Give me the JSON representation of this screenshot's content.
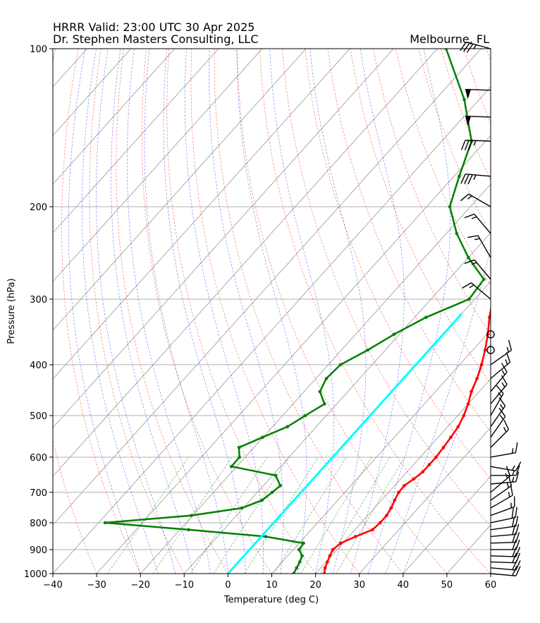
{
  "header": {
    "title_line1": "HRRR  Valid: 23:00 UTC 30 Apr 2025",
    "title_line2": "Dr. Stephen Masters Consulting, LLC",
    "location": "Melbourne, FL"
  },
  "chart_data": {
    "type": "skew-t",
    "xlabel": "Temperature (deg C)",
    "ylabel": "Pressure (hPa)",
    "xlim": [
      -40,
      60
    ],
    "ylim": [
      1000,
      100
    ],
    "y_scale": "log",
    "grid": true,
    "x_ticks": [
      -40,
      -30,
      -20,
      -10,
      0,
      10,
      20,
      30,
      40,
      50,
      60
    ],
    "y_ticks": [
      100,
      200,
      300,
      400,
      500,
      600,
      700,
      800,
      900,
      1000
    ],
    "colors": {
      "temperature": "#ff0000",
      "dewpoint": "#008000",
      "freezing_isotherm": "#00ffff",
      "isotherms": "#a0a0a0",
      "dry_adiabats": "#ff0000",
      "moist_adiabats": "#0000ff",
      "mixing_ratio": "#008000"
    },
    "series": [
      {
        "id": "temperature",
        "points": [
          [
            1000,
            22.0
          ],
          [
            975,
            21.0
          ],
          [
            950,
            20.3
          ],
          [
            925,
            19.6
          ],
          [
            900,
            19.0
          ],
          [
            875,
            19.5
          ],
          [
            850,
            21.5
          ],
          [
            825,
            24.0
          ],
          [
            800,
            24.3
          ],
          [
            775,
            24.3
          ],
          [
            750,
            23.8
          ],
          [
            725,
            23.0
          ],
          [
            700,
            22.3
          ],
          [
            680,
            22.2
          ],
          [
            660,
            23.0
          ],
          [
            640,
            23.6
          ],
          [
            620,
            23.6
          ],
          [
            600,
            23.6
          ],
          [
            575,
            23.3
          ],
          [
            550,
            22.9
          ],
          [
            525,
            22.4
          ],
          [
            500,
            21.4
          ],
          [
            475,
            20.0
          ],
          [
            450,
            18.2
          ],
          [
            425,
            16.8
          ],
          [
            400,
            15.0
          ],
          [
            375,
            12.8
          ],
          [
            350,
            10.2
          ],
          [
            325,
            7.1
          ],
          [
            300,
            4.1
          ],
          [
            275,
            0.5
          ],
          [
            250,
            -4.0
          ],
          [
            225,
            -8.6
          ],
          [
            200,
            -13.6
          ],
          [
            175,
            -13.5
          ],
          [
            150,
            -18.0
          ],
          [
            125,
            -25.6
          ],
          [
            112,
            -31.0
          ],
          [
            100,
            -37.5
          ]
        ]
      },
      {
        "id": "dewpoint",
        "points": [
          [
            1000,
            15.0
          ],
          [
            975,
            14.5
          ],
          [
            950,
            14.0
          ],
          [
            925,
            13.3
          ],
          [
            900,
            11.3
          ],
          [
            875,
            11.0
          ],
          [
            850,
            1.0
          ],
          [
            825,
            -18.0
          ],
          [
            800,
            -38.5
          ],
          [
            775,
            -20.3
          ],
          [
            750,
            -10.3
          ],
          [
            725,
            -7.3
          ],
          [
            700,
            -6.6
          ],
          [
            680,
            -6.1
          ],
          [
            650,
            -9.3
          ],
          [
            625,
            -21.2
          ],
          [
            600,
            -21.3
          ],
          [
            575,
            -23.4
          ],
          [
            550,
            -20.1
          ],
          [
            525,
            -16.6
          ],
          [
            500,
            -14.8
          ],
          [
            475,
            -12.8
          ],
          [
            450,
            -16.4
          ],
          [
            425,
            -17.6
          ],
          [
            400,
            -17.2
          ],
          [
            375,
            -14.0
          ],
          [
            350,
            -11.2
          ],
          [
            325,
            -7.4
          ],
          [
            300,
            -1.3
          ],
          [
            275,
            -2.0
          ],
          [
            250,
            -10.0
          ],
          [
            225,
            -17.6
          ],
          [
            200,
            -24.7
          ],
          [
            175,
            -28.8
          ],
          [
            150,
            -33.2
          ],
          [
            125,
            -43.4
          ],
          [
            100,
            -58.0
          ]
        ]
      },
      {
        "id": "freezing_isotherm",
        "points": [
          [
            1000,
            0.0
          ],
          [
            320,
            0.0
          ]
        ]
      }
    ],
    "wind_barbs": [
      {
        "p": 1000,
        "speed_kt": 20,
        "dir_deg": 95
      },
      {
        "p": 975,
        "speed_kt": 20,
        "dir_deg": 95
      },
      {
        "p": 950,
        "speed_kt": 20,
        "dir_deg": 92
      },
      {
        "p": 925,
        "speed_kt": 20,
        "dir_deg": 92
      },
      {
        "p": 900,
        "speed_kt": 20,
        "dir_deg": 90
      },
      {
        "p": 875,
        "speed_kt": 20,
        "dir_deg": 88
      },
      {
        "p": 850,
        "speed_kt": 20,
        "dir_deg": 85
      },
      {
        "p": 825,
        "speed_kt": 20,
        "dir_deg": 82
      },
      {
        "p": 800,
        "speed_kt": 20,
        "dir_deg": 78
      },
      {
        "p": 775,
        "speed_kt": 15,
        "dir_deg": 70
      },
      {
        "p": 750,
        "speed_kt": 15,
        "dir_deg": 60
      },
      {
        "p": 725,
        "speed_kt": 15,
        "dir_deg": 55
      },
      {
        "p": 700,
        "speed_kt": 15,
        "dir_deg": 50
      },
      {
        "p": 675,
        "speed_kt": 15,
        "dir_deg": 85
      },
      {
        "p": 650,
        "speed_kt": 15,
        "dir_deg": 90
      },
      {
        "p": 625,
        "speed_kt": 15,
        "dir_deg": 100
      },
      {
        "p": 600,
        "speed_kt": 15,
        "dir_deg": 80
      },
      {
        "p": 575,
        "speed_kt": 15,
        "dir_deg": 45
      },
      {
        "p": 550,
        "speed_kt": 15,
        "dir_deg": 35
      },
      {
        "p": 525,
        "speed_kt": 15,
        "dir_deg": 35
      },
      {
        "p": 500,
        "speed_kt": 15,
        "dir_deg": 30
      },
      {
        "p": 475,
        "speed_kt": 15,
        "dir_deg": 40
      },
      {
        "p": 450,
        "speed_kt": 15,
        "dir_deg": 40
      },
      {
        "p": 425,
        "speed_kt": 15,
        "dir_deg": 50
      },
      {
        "p": 400,
        "speed_kt": 15,
        "dir_deg": 55
      },
      {
        "p": 375,
        "speed_kt": 0,
        "dir_deg": 0
      },
      {
        "p": 350,
        "speed_kt": 0,
        "dir_deg": 0
      },
      {
        "p": 300,
        "speed_kt": 15,
        "dir_deg": 310
      },
      {
        "p": 275,
        "speed_kt": 15,
        "dir_deg": 320
      },
      {
        "p": 250,
        "speed_kt": 15,
        "dir_deg": 330
      },
      {
        "p": 225,
        "speed_kt": 15,
        "dir_deg": 320
      },
      {
        "p": 200,
        "speed_kt": 15,
        "dir_deg": 300
      },
      {
        "p": 175,
        "speed_kt": 35,
        "dir_deg": 275
      },
      {
        "p": 150,
        "speed_kt": 35,
        "dir_deg": 272
      },
      {
        "p": 135,
        "speed_kt": 50,
        "dir_deg": 272
      },
      {
        "p": 120,
        "speed_kt": 50,
        "dir_deg": 272
      },
      {
        "p": 100,
        "speed_kt": 35,
        "dir_deg": 285
      }
    ]
  }
}
